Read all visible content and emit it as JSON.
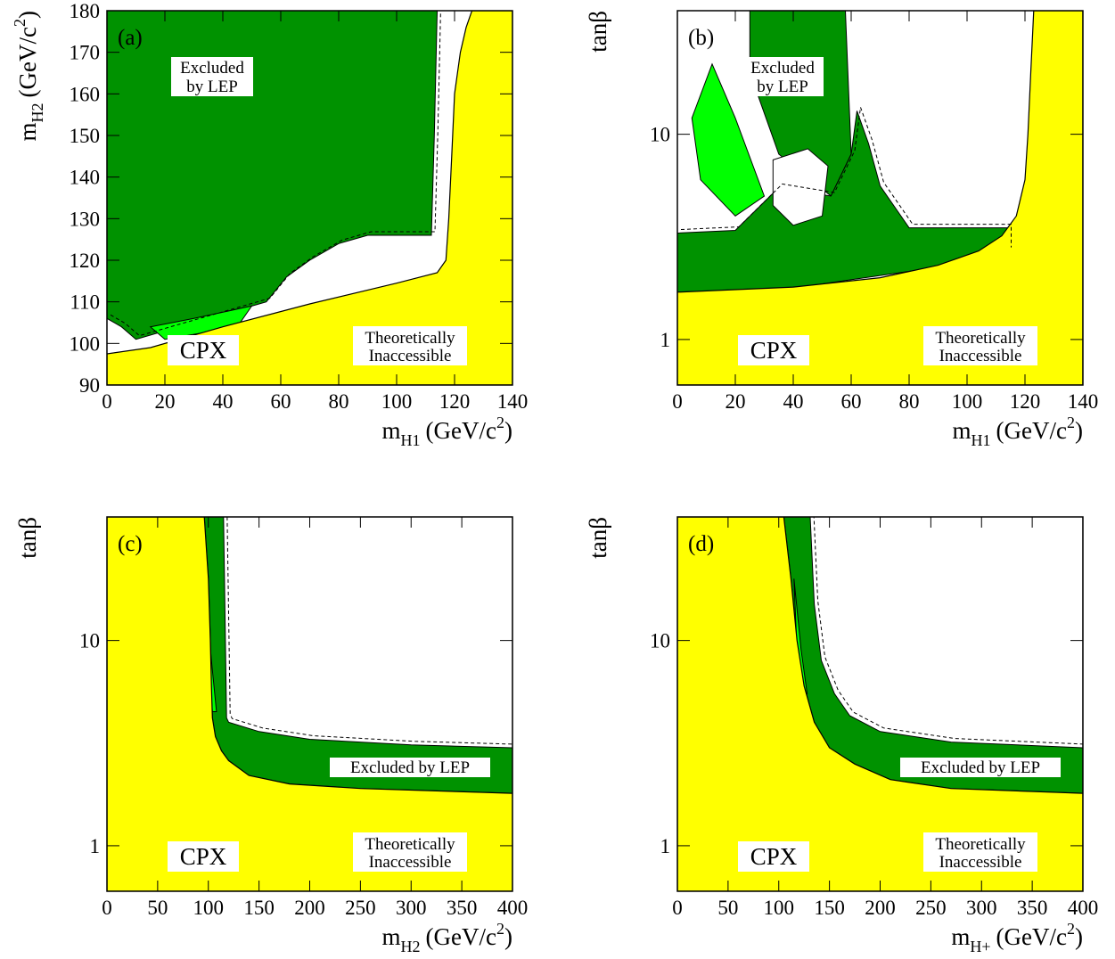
{
  "colors": {
    "excluded": "#009200",
    "excluded_light": "#00ff00",
    "theory": "#ffff00",
    "background": "#ffffff",
    "outline": "#000000"
  },
  "panels": [
    {
      "tag": "(a)",
      "x_label": "m",
      "x_sub": "H1",
      "x_unit": "(GeV/c",
      "y_label": "m",
      "y_sub": "H2",
      "y_unit": "(GeV/c",
      "x_ticks": [
        "0",
        "20",
        "40",
        "60",
        "80",
        "100",
        "120",
        "140"
      ],
      "y_ticks": [
        "90",
        "100",
        "110",
        "120",
        "130",
        "140",
        "150",
        "160",
        "170",
        "180"
      ],
      "excluded_label": [
        "Excluded",
        "by LEP"
      ],
      "theory_label": [
        "Theoretically",
        "Inaccessible"
      ],
      "scenario": "CPX"
    },
    {
      "tag": "(b)",
      "x_label": "m",
      "x_sub": "H1",
      "x_unit": "(GeV/c",
      "y_label": "tanβ",
      "x_ticks": [
        "0",
        "20",
        "40",
        "60",
        "80",
        "100",
        "120",
        "140"
      ],
      "y_ticks": [
        "1",
        "10"
      ],
      "excluded_label": [
        "Excluded",
        "by LEP"
      ],
      "theory_label": [
        "Theoretically",
        "Inaccessible"
      ],
      "scenario": "CPX"
    },
    {
      "tag": "(c)",
      "x_label": "m",
      "x_sub": "H2",
      "x_unit": "(GeV/c",
      "y_label": "tanβ",
      "x_ticks": [
        "0",
        "50",
        "100",
        "150",
        "200",
        "250",
        "300",
        "350",
        "400"
      ],
      "y_ticks": [
        "1",
        "10"
      ],
      "excluded_label": [
        "Excluded  by LEP"
      ],
      "theory_label": [
        "Theoretically",
        "Inaccessible"
      ],
      "scenario": "CPX"
    },
    {
      "tag": "(d)",
      "x_label": "m",
      "x_sub": "H+",
      "x_unit": "(GeV/c",
      "y_label": "tanβ",
      "x_ticks": [
        "0",
        "50",
        "100",
        "150",
        "200",
        "250",
        "300",
        "350",
        "400"
      ],
      "y_ticks": [
        "1",
        "10"
      ],
      "excluded_label": [
        "Excluded  by LEP"
      ],
      "theory_label": [
        "Theoretically",
        "Inaccessible"
      ],
      "scenario": "CPX"
    }
  ],
  "chart_data": [
    {
      "type": "area",
      "panel": "(a)",
      "xlabel": "m_H1 (GeV/c^2)",
      "ylabel": "m_H2 (GeV/c^2)",
      "xlim": [
        0,
        140
      ],
      "ylim": [
        90,
        180
      ],
      "y_scale": "linear",
      "regions": [
        {
          "name": "Theoretically Inaccessible",
          "boundary_x": [
            0,
            15,
            40,
            70,
            100,
            114,
            117,
            118,
            119,
            120,
            122,
            124,
            126
          ],
          "boundary_y": [
            97.5,
            99,
            104,
            109.5,
            114.5,
            117,
            120,
            130,
            145,
            160,
            170,
            176,
            180
          ]
        },
        {
          "name": "Excluded by LEP",
          "boundary_x": [
            0,
            5,
            10,
            20,
            40,
            55,
            62,
            70,
            80,
            90,
            100,
            112,
            113,
            114
          ],
          "boundary_y": [
            106,
            104,
            101,
            103,
            107,
            110,
            116,
            120,
            124,
            126,
            126,
            126,
            150,
            180
          ]
        }
      ]
    },
    {
      "type": "area",
      "panel": "(b)",
      "xlabel": "m_H1 (GeV/c^2)",
      "ylabel": "tanβ",
      "xlim": [
        0,
        140
      ],
      "ylim": [
        0.6,
        40
      ],
      "y_scale": "log",
      "regions": [
        {
          "name": "Theoretically Inaccessible",
          "boundary_x": [
            0,
            40,
            70,
            90,
            104,
            112,
            117,
            120,
            121,
            122,
            123
          ],
          "boundary_y": [
            1.7,
            1.8,
            2.0,
            2.3,
            2.7,
            3.2,
            4,
            6,
            10,
            20,
            40
          ]
        },
        {
          "name": "Excluded by LEP",
          "boundary_x": [
            0,
            20,
            35,
            53,
            60,
            62,
            66,
            70,
            80,
            90,
            100,
            114,
            114
          ],
          "boundary_y": [
            3.3,
            3.4,
            5.5,
            5,
            8,
            13,
            9,
            5.6,
            3.5,
            3.5,
            3.5,
            3.5,
            2.7
          ]
        }
      ]
    },
    {
      "type": "area",
      "panel": "(c)",
      "xlabel": "m_H2 (GeV/c^2)",
      "ylabel": "tanβ",
      "xlim": [
        0,
        400
      ],
      "ylim": [
        0.6,
        40
      ],
      "y_scale": "log",
      "regions": [
        {
          "name": "Theoretically Inaccessible",
          "boundary_x": [
            96,
            100,
            102,
            103,
            104,
            107,
            113,
            120,
            140,
            180,
            250,
            400
          ],
          "boundary_y": [
            40,
            20,
            10,
            6,
            4.2,
            3.4,
            2.9,
            2.6,
            2.2,
            2.0,
            1.9,
            1.8
          ]
        },
        {
          "name": "Excluded by LEP",
          "boundary_x": [
            100,
            115,
            118,
            120,
            150,
            200,
            300,
            400
          ],
          "boundary_y": [
            40,
            40,
            4.2,
            4,
            3.6,
            3.3,
            3.1,
            3.0
          ]
        }
      ]
    },
    {
      "type": "area",
      "panel": "(d)",
      "xlabel": "m_H+ (GeV/c^2)",
      "ylabel": "tanβ",
      "xlim": [
        0,
        400
      ],
      "ylim": [
        0.6,
        40
      ],
      "y_scale": "log",
      "regions": [
        {
          "name": "Theoretically Inaccessible",
          "boundary_x": [
            105,
            112,
            118,
            125,
            135,
            150,
            175,
            210,
            270,
            400
          ],
          "boundary_y": [
            40,
            20,
            10,
            6,
            4,
            3,
            2.5,
            2.1,
            1.9,
            1.8
          ]
        },
        {
          "name": "Excluded by LEP",
          "boundary_x": [
            120,
            131,
            135,
            142,
            155,
            170,
            200,
            270,
            400
          ],
          "boundary_y": [
            40,
            40,
            15,
            8,
            5.5,
            4.3,
            3.6,
            3.2,
            3.0
          ]
        }
      ]
    }
  ]
}
